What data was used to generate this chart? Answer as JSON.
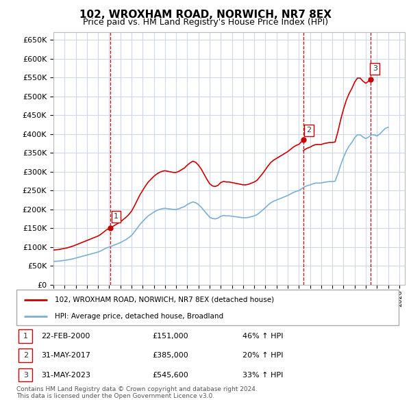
{
  "title": "102, WROXHAM ROAD, NORWICH, NR7 8EX",
  "subtitle": "Price paid vs. HM Land Registry's House Price Index (HPI)",
  "ylim": [
    0,
    670000
  ],
  "yticks": [
    0,
    50000,
    100000,
    150000,
    200000,
    250000,
    300000,
    350000,
    400000,
    450000,
    500000,
    550000,
    600000,
    650000
  ],
  "xlim_start": 1995.0,
  "xlim_end": 2026.5,
  "background_color": "#ffffff",
  "grid_color": "#d0d8e8",
  "sale_color": "#cc0000",
  "hpi_color": "#7ab0d4",
  "transactions": [
    {
      "date_year": 2000.12,
      "price": 151000,
      "label": "1"
    },
    {
      "date_year": 2017.41,
      "price": 385000,
      "label": "2"
    },
    {
      "date_year": 2023.41,
      "price": 545600,
      "label": "3"
    }
  ],
  "legend_sale_label": "102, WROXHAM ROAD, NORWICH, NR7 8EX (detached house)",
  "legend_hpi_label": "HPI: Average price, detached house, Broadland",
  "table_rows": [
    {
      "num": "1",
      "date": "22-FEB-2000",
      "price": "£151,000",
      "change": "46% ↑ HPI"
    },
    {
      "num": "2",
      "date": "31-MAY-2017",
      "price": "£385,000",
      "change": "20% ↑ HPI"
    },
    {
      "num": "3",
      "date": "31-MAY-2023",
      "price": "£545,600",
      "change": "33% ↑ HPI"
    }
  ],
  "footnote": "Contains HM Land Registry data © Crown copyright and database right 2024.\nThis data is licensed under the Open Government Licence v3.0.",
  "hpi_data_x": [
    1995.0,
    1995.25,
    1995.5,
    1995.75,
    1996.0,
    1996.25,
    1996.5,
    1996.75,
    1997.0,
    1997.25,
    1997.5,
    1997.75,
    1998.0,
    1998.25,
    1998.5,
    1998.75,
    1999.0,
    1999.25,
    1999.5,
    1999.75,
    2000.0,
    2000.25,
    2000.5,
    2000.75,
    2001.0,
    2001.25,
    2001.5,
    2001.75,
    2002.0,
    2002.25,
    2002.5,
    2002.75,
    2003.0,
    2003.25,
    2003.5,
    2003.75,
    2004.0,
    2004.25,
    2004.5,
    2004.75,
    2005.0,
    2005.25,
    2005.5,
    2005.75,
    2006.0,
    2006.25,
    2006.5,
    2006.75,
    2007.0,
    2007.25,
    2007.5,
    2007.75,
    2008.0,
    2008.25,
    2008.5,
    2008.75,
    2009.0,
    2009.25,
    2009.5,
    2009.75,
    2010.0,
    2010.25,
    2010.5,
    2010.75,
    2011.0,
    2011.25,
    2011.5,
    2011.75,
    2012.0,
    2012.25,
    2012.5,
    2012.75,
    2013.0,
    2013.25,
    2013.5,
    2013.75,
    2014.0,
    2014.25,
    2014.5,
    2014.75,
    2015.0,
    2015.25,
    2015.5,
    2015.75,
    2016.0,
    2016.25,
    2016.5,
    2016.75,
    2017.0,
    2017.25,
    2017.5,
    2017.75,
    2018.0,
    2018.25,
    2018.5,
    2018.75,
    2019.0,
    2019.25,
    2019.5,
    2019.75,
    2020.0,
    2020.25,
    2020.5,
    2020.75,
    2021.0,
    2021.25,
    2021.5,
    2021.75,
    2022.0,
    2022.25,
    2022.5,
    2022.75,
    2023.0,
    2023.25,
    2023.5,
    2023.75,
    2024.0,
    2024.25,
    2024.5,
    2024.75,
    2025.0
  ],
  "hpi_data_y": [
    62000,
    62500,
    63000,
    64000,
    65000,
    66000,
    67500,
    69000,
    71000,
    73000,
    75000,
    77000,
    79000,
    81000,
    83000,
    85000,
    87000,
    90000,
    94000,
    98000,
    100000,
    103000,
    106000,
    109000,
    112000,
    116000,
    120000,
    125000,
    131000,
    140000,
    150000,
    160000,
    168000,
    176000,
    183000,
    188000,
    193000,
    197000,
    200000,
    202000,
    203000,
    202000,
    201000,
    200000,
    200000,
    202000,
    205000,
    208000,
    213000,
    217000,
    220000,
    218000,
    213000,
    206000,
    197000,
    188000,
    180000,
    176000,
    175000,
    177000,
    182000,
    184000,
    183000,
    183000,
    182000,
    181000,
    180000,
    179000,
    178000,
    178000,
    179000,
    181000,
    183000,
    186000,
    192000,
    198000,
    205000,
    212000,
    218000,
    222000,
    225000,
    228000,
    231000,
    234000,
    237000,
    241000,
    245000,
    248000,
    250000,
    255000,
    260000,
    263000,
    265000,
    268000,
    270000,
    270000,
    270000,
    272000,
    273000,
    274000,
    274000,
    275000,
    295000,
    318000,
    338000,
    355000,
    368000,
    378000,
    390000,
    398000,
    398000,
    392000,
    388000,
    392000,
    398000,
    398000,
    395000,
    400000,
    408000,
    415000,
    418000
  ]
}
